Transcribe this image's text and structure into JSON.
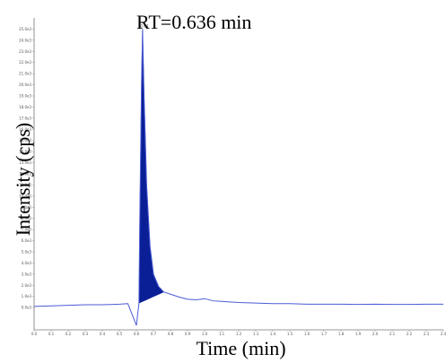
{
  "chart_data": {
    "type": "line",
    "title": "",
    "annotation": "RT=0.636 min",
    "peak_label": "0.64",
    "xlabel": "Time (min)",
    "ylabel": "Intensity (cps)",
    "xlim": [
      0.0,
      2.4
    ],
    "ylim": [
      -2.0,
      26.0
    ],
    "x_ticks": [
      0.0,
      0.1,
      0.2,
      0.3,
      0.4,
      0.5,
      0.6,
      0.7,
      0.8,
      0.9,
      1.0,
      1.1,
      1.2,
      1.3,
      1.4,
      1.5,
      1.6,
      1.7,
      1.8,
      1.9,
      2.0,
      2.1,
      2.2,
      2.3,
      2.4
    ],
    "y_ticks": [
      0,
      1,
      2,
      3,
      4,
      5,
      6,
      7,
      8,
      9,
      10,
      11,
      12,
      13,
      14,
      15,
      16,
      17,
      18,
      19,
      20,
      21,
      22,
      23,
      24,
      25
    ],
    "colors": {
      "trace": "#4a5bd4",
      "peak_fill": "#0a1f96"
    },
    "series": [
      {
        "values": [
          [
            0.0,
            0.1
          ],
          [
            0.1,
            0.15
          ],
          [
            0.2,
            0.2
          ],
          [
            0.3,
            0.25
          ],
          [
            0.4,
            0.25
          ],
          [
            0.5,
            0.3
          ],
          [
            0.55,
            0.35
          ],
          [
            0.6,
            -1.6
          ],
          [
            0.615,
            0.4
          ],
          [
            0.62,
            8.0
          ],
          [
            0.63,
            20.0
          ],
          [
            0.636,
            25.0
          ],
          [
            0.645,
            19.0
          ],
          [
            0.66,
            11.0
          ],
          [
            0.68,
            5.5
          ],
          [
            0.7,
            3.0
          ],
          [
            0.73,
            1.9
          ],
          [
            0.76,
            1.4
          ],
          [
            0.8,
            1.2
          ],
          [
            0.85,
            0.95
          ],
          [
            0.9,
            0.75
          ],
          [
            0.95,
            0.7
          ],
          [
            1.0,
            0.8
          ],
          [
            1.05,
            0.6
          ],
          [
            1.1,
            0.55
          ],
          [
            1.2,
            0.45
          ],
          [
            1.3,
            0.4
          ],
          [
            1.4,
            0.35
          ],
          [
            1.5,
            0.35
          ],
          [
            1.6,
            0.3
          ],
          [
            1.7,
            0.3
          ],
          [
            1.8,
            0.3
          ],
          [
            1.9,
            0.28
          ],
          [
            2.0,
            0.3
          ],
          [
            2.1,
            0.28
          ],
          [
            2.2,
            0.28
          ],
          [
            2.3,
            0.3
          ],
          [
            2.4,
            0.3
          ]
        ]
      }
    ],
    "peak": {
      "x_start": 0.615,
      "x_end": 0.76
    }
  }
}
